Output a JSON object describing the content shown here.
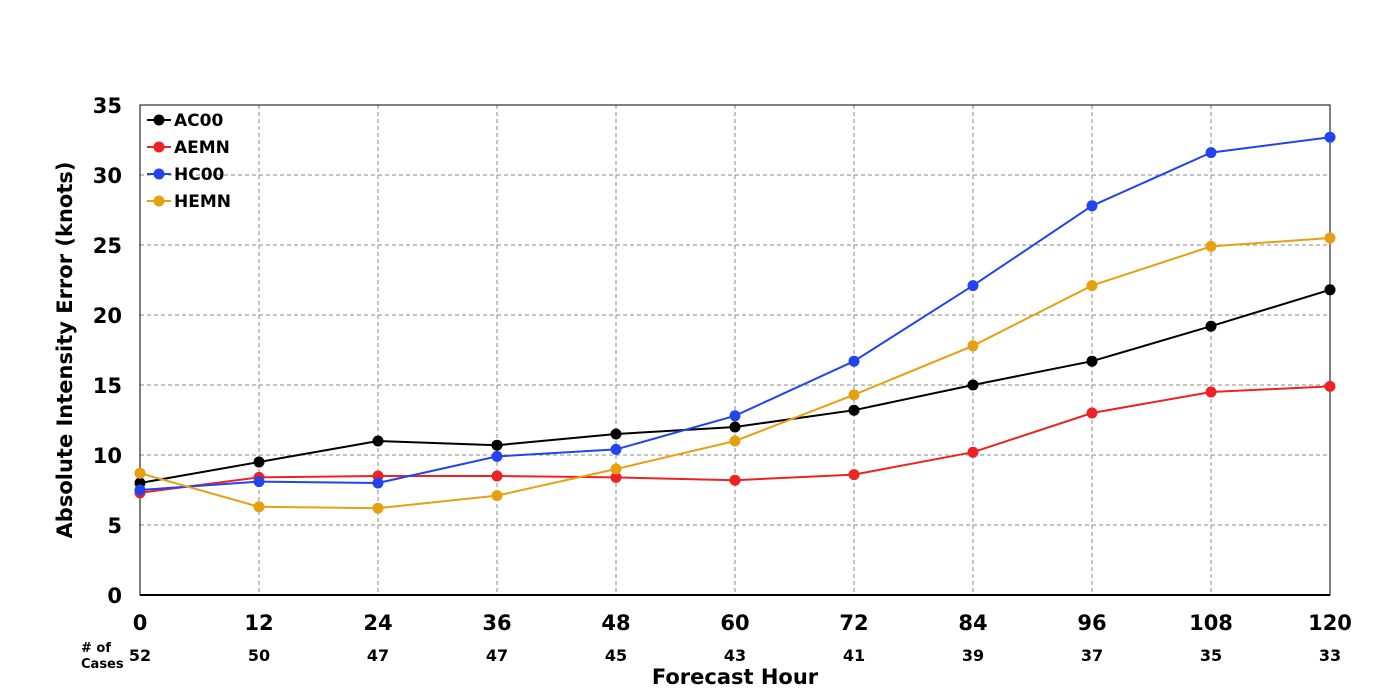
{
  "chart_data": {
    "type": "line",
    "xlabel": "Forecast Hour",
    "ylabel": "Absolute Intensity Error (knots)",
    "x": [
      0,
      12,
      24,
      36,
      48,
      60,
      72,
      84,
      96,
      108,
      120
    ],
    "xlim": [
      0,
      120
    ],
    "ylim": [
      0,
      35
    ],
    "yticks": [
      0,
      5,
      10,
      15,
      20,
      25,
      30,
      35
    ],
    "grid": true,
    "legend_position": "top-left",
    "cases_title_line1": "# of",
    "cases_title_line2": "Cases",
    "cases": [
      "52",
      "50",
      "47",
      "47",
      "45",
      "43",
      "41",
      "39",
      "37",
      "35",
      "33"
    ],
    "series": [
      {
        "name": "AC00",
        "color": "#000000",
        "values": [
          8.0,
          9.5,
          11.0,
          10.7,
          11.5,
          12.0,
          13.2,
          15.0,
          16.7,
          19.2,
          21.8
        ]
      },
      {
        "name": "AEMN",
        "color": "#ee2222",
        "values": [
          7.3,
          8.4,
          8.5,
          8.5,
          8.4,
          8.2,
          8.6,
          10.2,
          13.0,
          14.5,
          14.9
        ]
      },
      {
        "name": "HC00",
        "color": "#2244ee",
        "values": [
          7.5,
          8.1,
          8.0,
          9.9,
          10.4,
          12.8,
          16.7,
          22.1,
          27.8,
          31.6,
          32.7
        ]
      },
      {
        "name": "HEMN",
        "color": "#e6a010",
        "values": [
          8.7,
          6.3,
          6.2,
          7.1,
          9.0,
          11.0,
          14.3,
          17.8,
          22.1,
          24.9,
          25.5
        ]
      }
    ]
  }
}
